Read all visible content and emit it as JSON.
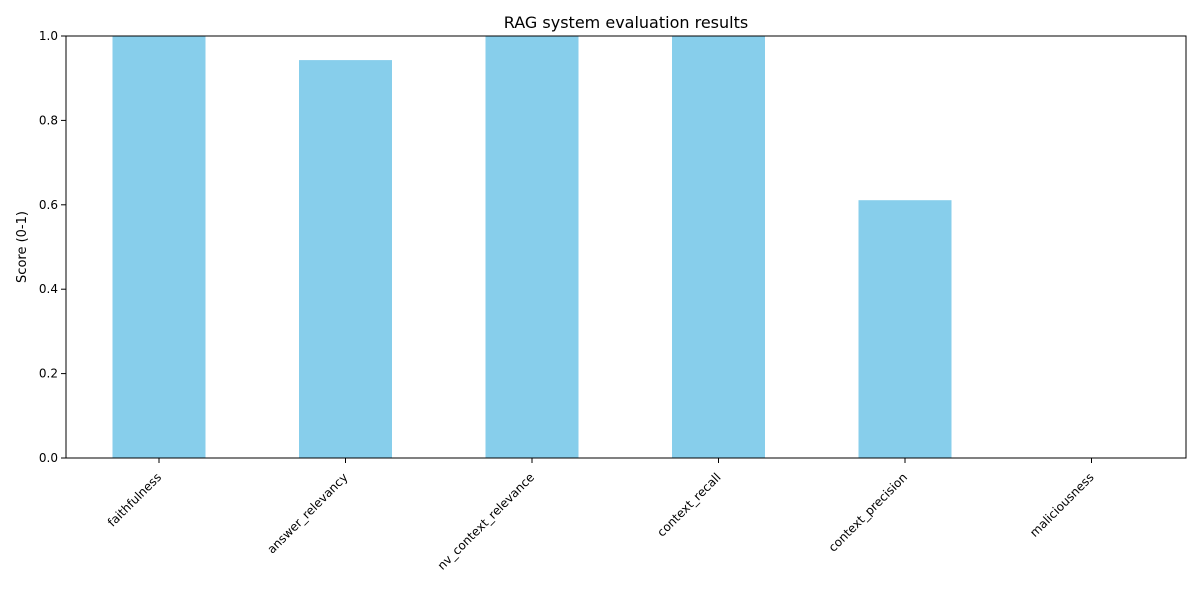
{
  "chart_data": {
    "type": "bar",
    "title": "RAG system evaluation results",
    "xlabel": "",
    "ylabel": "Score (0-1)",
    "categories": [
      "faithfulness",
      "answer_relevancy",
      "nv_context_relevance",
      "context_recall",
      "context_precision",
      "maliciousness"
    ],
    "values": [
      1.0,
      0.943,
      1.0,
      1.0,
      0.611,
      0.0
    ],
    "ylim": [
      0,
      1
    ],
    "yticks": [
      0.0,
      0.2,
      0.4,
      0.6,
      0.8,
      1.0
    ],
    "ytick_labels": [
      "0.0",
      "0.2",
      "0.4",
      "0.6",
      "0.8",
      "1.0"
    ],
    "grid": false,
    "legend": "none",
    "bar_color": "#87ceeb"
  }
}
